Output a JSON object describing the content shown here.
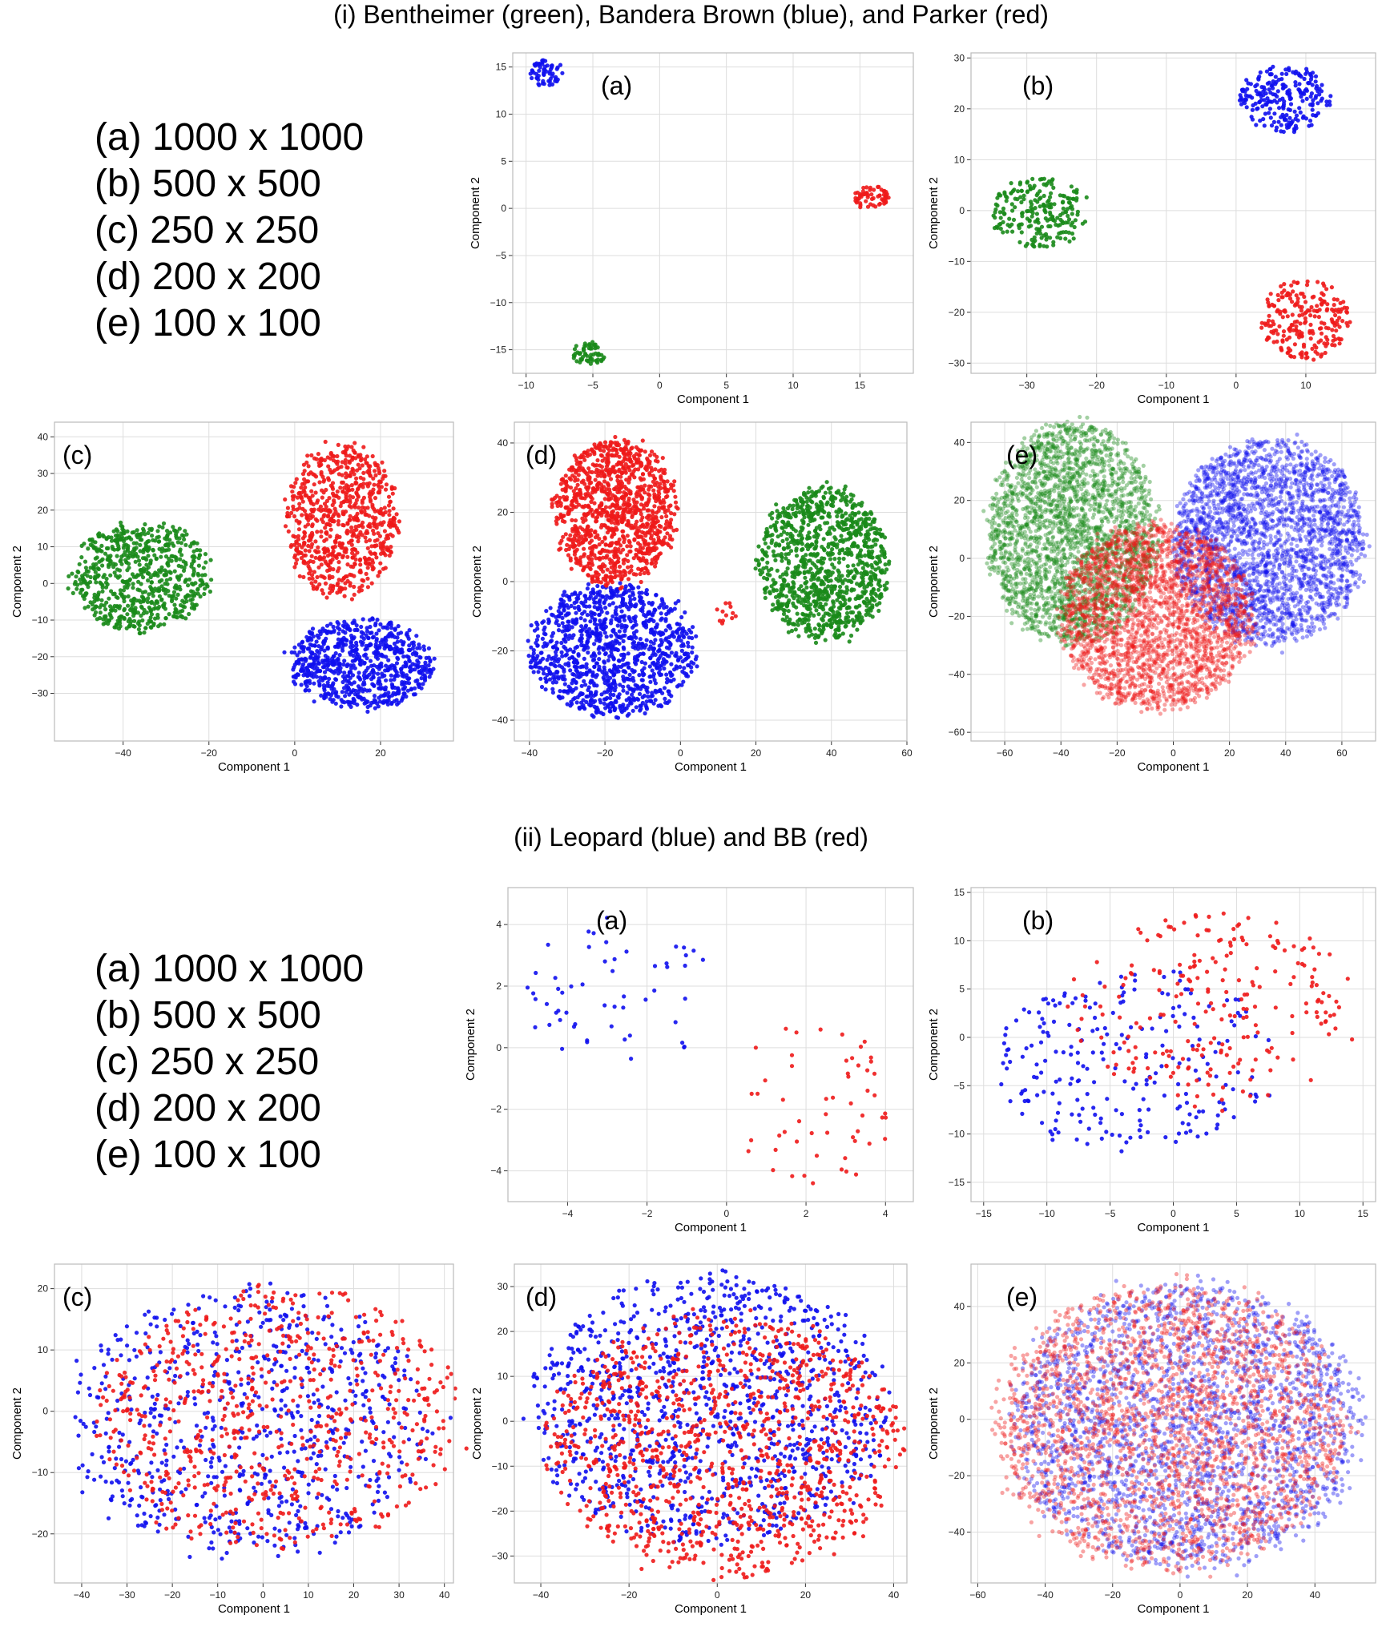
{
  "section_i": {
    "title": "(i) Bentheimer (green), Bandera Brown (blue), and Parker (red)",
    "sizes": [
      "(a) 1000 x 1000",
      "(b) 500 x 500",
      "(c) 250 x 250",
      "(d) 200 x 200",
      "(e) 100 x 100"
    ]
  },
  "section_ii": {
    "title": "(ii) Leopard (blue) and BB (red)",
    "sizes": [
      "(a) 1000 x 1000",
      "(b) 500 x 500",
      "(c) 250 x 250",
      "(d) 200 x 200",
      "(e) 100 x 100"
    ]
  },
  "colors": {
    "green": "#1a8a1a",
    "blue": "#1010ee",
    "red": "#ee1a1a",
    "grid": "#dddddd",
    "frame": "#bbbbbb"
  },
  "chart_data": [
    {
      "type": "scatter",
      "panel": "(a)",
      "group": "i",
      "xlabel": "Component 1",
      "ylabel": "Component 2",
      "xlim": [
        -11,
        19
      ],
      "ylim": [
        -17.5,
        16.5
      ],
      "xticks": [
        -10,
        -5,
        0,
        5,
        10,
        15
      ],
      "yticks": [
        -15,
        -10,
        -5,
        0,
        5,
        10,
        15
      ],
      "grid": true,
      "alpha": 0.9,
      "radius": 2.6,
      "series": [
        {
          "color": "green",
          "clusters": [
            {
              "cx": -5.3,
              "cy": -15.4,
              "rx": 1.3,
              "ry": 1.2,
              "n": 60
            }
          ]
        },
        {
          "color": "blue",
          "clusters": [
            {
              "cx": -8.5,
              "cy": 14.4,
              "rx": 1.3,
              "ry": 1.4,
              "n": 60
            }
          ]
        },
        {
          "color": "red",
          "clusters": [
            {
              "cx": 15.9,
              "cy": 1.2,
              "rx": 1.3,
              "ry": 1.2,
              "n": 60
            }
          ]
        }
      ]
    },
    {
      "type": "scatter",
      "panel": "(b)",
      "group": "i",
      "xlabel": "Component 1",
      "ylabel": "Component 2",
      "xlim": [
        -38,
        20
      ],
      "ylim": [
        -32,
        31
      ],
      "xticks": [
        -30,
        -20,
        -10,
        0,
        10
      ],
      "yticks": [
        -30,
        -20,
        -10,
        0,
        10,
        20,
        30
      ],
      "grid": true,
      "alpha": 0.9,
      "radius": 2.6,
      "series": [
        {
          "color": "green",
          "clusters": [
            {
              "cx": -28,
              "cy": -0.5,
              "rx": 7,
              "ry": 7,
              "n": 230
            }
          ]
        },
        {
          "color": "blue",
          "clusters": [
            {
              "cx": 7,
              "cy": 22,
              "rx": 6.5,
              "ry": 6.5,
              "n": 230
            }
          ]
        },
        {
          "color": "red",
          "clusters": [
            {
              "cx": 10,
              "cy": -21.5,
              "rx": 6.5,
              "ry": 8,
              "n": 230
            }
          ]
        }
      ]
    },
    {
      "type": "scatter",
      "panel": "(c)",
      "group": "i",
      "xlabel": "Component 1",
      "ylabel": "Component 2",
      "xlim": [
        -56,
        37
      ],
      "ylim": [
        -43,
        44
      ],
      "xticks": [
        -40,
        -20,
        0,
        20
      ],
      "yticks": [
        -30,
        -20,
        -10,
        0,
        10,
        20,
        30,
        40
      ],
      "grid": true,
      "alpha": 0.9,
      "radius": 2.6,
      "series": [
        {
          "color": "green",
          "clusters": [
            {
              "cx": -36,
              "cy": 2,
              "rx": 16,
              "ry": 15,
              "n": 700
            }
          ]
        },
        {
          "color": "blue",
          "clusters": [
            {
              "cx": 15.5,
              "cy": -22,
              "rx": 17,
              "ry": 12,
              "n": 750
            }
          ]
        },
        {
          "color": "red",
          "clusters": [
            {
              "cx": 11,
              "cy": 17,
              "rx": 13,
              "ry": 21,
              "n": 750
            }
          ]
        }
      ]
    },
    {
      "type": "scatter",
      "panel": "(d)",
      "group": "i",
      "xlabel": "Component 1",
      "ylabel": "Component 2",
      "xlim": [
        -44,
        60
      ],
      "ylim": [
        -46,
        46
      ],
      "xticks": [
        -40,
        -20,
        0,
        20,
        40,
        60
      ],
      "yticks": [
        -40,
        -20,
        0,
        20,
        40
      ],
      "grid": true,
      "alpha": 0.9,
      "radius": 2.6,
      "series": [
        {
          "color": "green",
          "clusters": [
            {
              "cx": 38,
              "cy": 5,
              "rx": 17,
              "ry": 22,
              "n": 1100
            }
          ]
        },
        {
          "color": "blue",
          "clusters": [
            {
              "cx": -18,
              "cy": -20,
              "rx": 22,
              "ry": 19,
              "n": 1100
            }
          ]
        },
        {
          "color": "red",
          "clusters": [
            {
              "cx": -17,
              "cy": 20,
              "rx": 16,
              "ry": 21,
              "n": 1100
            },
            {
              "cx": 12,
              "cy": -9,
              "rx": 3,
              "ry": 3,
              "n": 12
            }
          ]
        }
      ]
    },
    {
      "type": "scatter",
      "panel": "(e)",
      "group": "i",
      "xlabel": "Component 1",
      "ylabel": "Component 2",
      "xlim": [
        -72,
        72
      ],
      "ylim": [
        -63,
        47
      ],
      "xticks": [
        -60,
        -40,
        -20,
        0,
        20,
        40,
        60
      ],
      "yticks": [
        -60,
        -40,
        -20,
        0,
        20,
        40
      ],
      "grid": true,
      "alpha": 0.4,
      "radius": 2.6,
      "series": [
        {
          "color": "green",
          "clusters": [
            {
              "cx": -36,
              "cy": 9,
              "rx": 30,
              "ry": 38,
              "n": 2600
            }
          ]
        },
        {
          "color": "blue",
          "clusters": [
            {
              "cx": 34,
              "cy": 6,
              "rx": 34,
              "ry": 35,
              "n": 2600
            }
          ]
        },
        {
          "color": "red",
          "clusters": [
            {
              "cx": -6,
              "cy": -20,
              "rx": 34,
              "ry": 32,
              "n": 2600
            }
          ]
        }
      ]
    },
    {
      "type": "scatter",
      "panel": "(a)",
      "group": "ii",
      "xlabel": "Component 1",
      "ylabel": "Component 2",
      "xlim": [
        -5.5,
        4.7
      ],
      "ylim": [
        -5,
        5.2
      ],
      "xticks": [
        -4,
        -2,
        0,
        2,
        4
      ],
      "yticks": [
        -4,
        -2,
        0,
        2,
        4
      ],
      "grid": true,
      "alpha": 0.9,
      "radius": 2.6,
      "series": [
        {
          "color": "blue",
          "clusters": [
            {
              "cx": -2.8,
              "cy": 1.8,
              "rx": 2.4,
              "ry": 2.6,
              "n": 55
            }
          ]
        },
        {
          "color": "red",
          "clusters": [
            {
              "cx": 2.2,
              "cy": -1.9,
              "rx": 2.0,
              "ry": 2.8,
              "n": 55
            }
          ]
        }
      ]
    },
    {
      "type": "scatter",
      "panel": "(b)",
      "group": "ii",
      "xlabel": "Component 1",
      "ylabel": "Component 2",
      "xlim": [
        -16,
        16
      ],
      "ylim": [
        -17,
        15.5
      ],
      "xticks": [
        -15,
        -10,
        -5,
        0,
        5,
        10,
        15
      ],
      "yticks": [
        -15,
        -10,
        -5,
        0,
        5,
        10,
        15
      ],
      "grid": true,
      "alpha": 0.9,
      "radius": 2.6,
      "series": [
        {
          "color": "blue",
          "clusters": [
            {
              "cx": -3,
              "cy": -3,
              "rx": 11,
              "ry": 10,
              "n": 230
            }
          ]
        },
        {
          "color": "red",
          "clusters": [
            {
              "cx": 3,
              "cy": 3,
              "rx": 11,
              "ry": 10,
              "n": 230
            }
          ]
        }
      ]
    },
    {
      "type": "scatter",
      "panel": "(c)",
      "group": "ii",
      "xlabel": "Component 1",
      "ylabel": "Component 2",
      "xlim": [
        -46,
        42
      ],
      "ylim": [
        -28,
        24
      ],
      "xticks": [
        -40,
        -30,
        -20,
        -10,
        0,
        10,
        20,
        30,
        40
      ],
      "yticks": [
        -20,
        -10,
        0,
        10,
        20
      ],
      "grid": true,
      "alpha": 0.9,
      "radius": 2.6,
      "series": [
        {
          "color": "blue",
          "clusters": [
            {
              "cx": -3,
              "cy": -2,
              "rx": 40,
              "ry": 22,
              "n": 700
            }
          ]
        },
        {
          "color": "red",
          "clusters": [
            {
              "cx": 3,
              "cy": -1,
              "rx": 40,
              "ry": 21,
              "n": 700
            }
          ]
        }
      ]
    },
    {
      "type": "scatter",
      "panel": "(d)",
      "group": "ii",
      "xlabel": "Component 1",
      "ylabel": "Component 2",
      "xlim": [
        -46,
        43
      ],
      "ylim": [
        -36,
        35
      ],
      "xticks": [
        -40,
        -20,
        0,
        20,
        40
      ],
      "yticks": [
        -30,
        -20,
        -10,
        0,
        10,
        20,
        30
      ],
      "grid": true,
      "alpha": 0.9,
      "radius": 2.6,
      "series": [
        {
          "color": "blue",
          "clusters": [
            {
              "cx": -2,
              "cy": 3,
              "rx": 40,
              "ry": 30,
              "n": 1100
            }
          ]
        },
        {
          "color": "red",
          "clusters": [
            {
              "cx": 2,
              "cy": -5,
              "rx": 40,
              "ry": 29,
              "n": 1100
            }
          ]
        }
      ]
    },
    {
      "type": "scatter",
      "panel": "(e)",
      "group": "ii",
      "xlabel": "Component 1",
      "ylabel": "Component 2",
      "xlim": [
        -62,
        58
      ],
      "ylim": [
        -58,
        55
      ],
      "xticks": [
        -60,
        -40,
        -20,
        0,
        20,
        40
      ],
      "yticks": [
        -40,
        -20,
        0,
        20,
        40
      ],
      "grid": true,
      "alpha": 0.4,
      "radius": 2.6,
      "series": [
        {
          "color": "blue",
          "clusters": [
            {
              "cx": 2,
              "cy": -2,
              "rx": 52,
              "ry": 50,
              "n": 2400
            }
          ]
        },
        {
          "color": "red",
          "clusters": [
            {
              "cx": -3,
              "cy": -2,
              "rx": 52,
              "ry": 50,
              "n": 2400
            }
          ]
        }
      ]
    }
  ]
}
